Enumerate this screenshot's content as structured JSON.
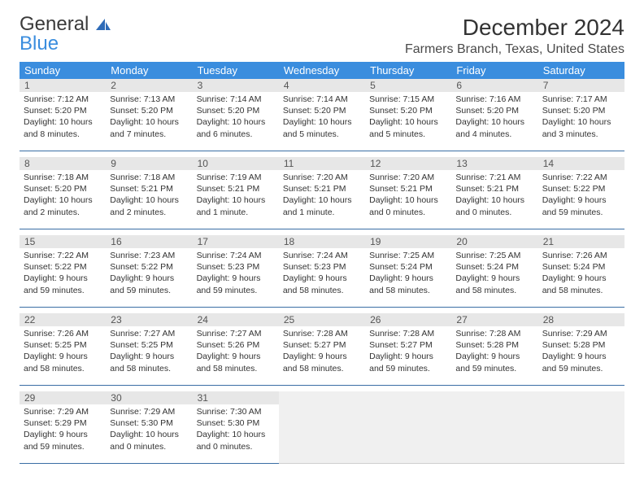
{
  "brand": {
    "general": "General",
    "blue": "Blue"
  },
  "title": "December 2024",
  "location": "Farmers Branch, Texas, United States",
  "colors": {
    "header_bg": "#3a8dde",
    "header_fg": "#ffffff",
    "daynum_bg": "#e7e7e7",
    "empty_bg": "#f0f0f0",
    "row_border": "#3a6ea5",
    "logo_blue": "#3a8dde"
  },
  "font": {
    "family": "Arial",
    "title_pt": 28,
    "location_pt": 16,
    "daynum_pt": 12,
    "body_pt": 10.5,
    "header_pt": 13
  },
  "weekdays": [
    "Sunday",
    "Monday",
    "Tuesday",
    "Wednesday",
    "Thursday",
    "Friday",
    "Saturday"
  ],
  "cols": 7,
  "days": {
    "1": {
      "sunrise": "7:12 AM",
      "sunset": "5:20 PM",
      "daylight": "10 hours and 8 minutes."
    },
    "2": {
      "sunrise": "7:13 AM",
      "sunset": "5:20 PM",
      "daylight": "10 hours and 7 minutes."
    },
    "3": {
      "sunrise": "7:14 AM",
      "sunset": "5:20 PM",
      "daylight": "10 hours and 6 minutes."
    },
    "4": {
      "sunrise": "7:14 AM",
      "sunset": "5:20 PM",
      "daylight": "10 hours and 5 minutes."
    },
    "5": {
      "sunrise": "7:15 AM",
      "sunset": "5:20 PM",
      "daylight": "10 hours and 5 minutes."
    },
    "6": {
      "sunrise": "7:16 AM",
      "sunset": "5:20 PM",
      "daylight": "10 hours and 4 minutes."
    },
    "7": {
      "sunrise": "7:17 AM",
      "sunset": "5:20 PM",
      "daylight": "10 hours and 3 minutes."
    },
    "8": {
      "sunrise": "7:18 AM",
      "sunset": "5:20 PM",
      "daylight": "10 hours and 2 minutes."
    },
    "9": {
      "sunrise": "7:18 AM",
      "sunset": "5:21 PM",
      "daylight": "10 hours and 2 minutes."
    },
    "10": {
      "sunrise": "7:19 AM",
      "sunset": "5:21 PM",
      "daylight": "10 hours and 1 minute."
    },
    "11": {
      "sunrise": "7:20 AM",
      "sunset": "5:21 PM",
      "daylight": "10 hours and 1 minute."
    },
    "12": {
      "sunrise": "7:20 AM",
      "sunset": "5:21 PM",
      "daylight": "10 hours and 0 minutes."
    },
    "13": {
      "sunrise": "7:21 AM",
      "sunset": "5:21 PM",
      "daylight": "10 hours and 0 minutes."
    },
    "14": {
      "sunrise": "7:22 AM",
      "sunset": "5:22 PM",
      "daylight": "9 hours and 59 minutes."
    },
    "15": {
      "sunrise": "7:22 AM",
      "sunset": "5:22 PM",
      "daylight": "9 hours and 59 minutes."
    },
    "16": {
      "sunrise": "7:23 AM",
      "sunset": "5:22 PM",
      "daylight": "9 hours and 59 minutes."
    },
    "17": {
      "sunrise": "7:24 AM",
      "sunset": "5:23 PM",
      "daylight": "9 hours and 59 minutes."
    },
    "18": {
      "sunrise": "7:24 AM",
      "sunset": "5:23 PM",
      "daylight": "9 hours and 58 minutes."
    },
    "19": {
      "sunrise": "7:25 AM",
      "sunset": "5:24 PM",
      "daylight": "9 hours and 58 minutes."
    },
    "20": {
      "sunrise": "7:25 AM",
      "sunset": "5:24 PM",
      "daylight": "9 hours and 58 minutes."
    },
    "21": {
      "sunrise": "7:26 AM",
      "sunset": "5:24 PM",
      "daylight": "9 hours and 58 minutes."
    },
    "22": {
      "sunrise": "7:26 AM",
      "sunset": "5:25 PM",
      "daylight": "9 hours and 58 minutes."
    },
    "23": {
      "sunrise": "7:27 AM",
      "sunset": "5:25 PM",
      "daylight": "9 hours and 58 minutes."
    },
    "24": {
      "sunrise": "7:27 AM",
      "sunset": "5:26 PM",
      "daylight": "9 hours and 58 minutes."
    },
    "25": {
      "sunrise": "7:28 AM",
      "sunset": "5:27 PM",
      "daylight": "9 hours and 58 minutes."
    },
    "26": {
      "sunrise": "7:28 AM",
      "sunset": "5:27 PM",
      "daylight": "9 hours and 59 minutes."
    },
    "27": {
      "sunrise": "7:28 AM",
      "sunset": "5:28 PM",
      "daylight": "9 hours and 59 minutes."
    },
    "28": {
      "sunrise": "7:29 AM",
      "sunset": "5:28 PM",
      "daylight": "9 hours and 59 minutes."
    },
    "29": {
      "sunrise": "7:29 AM",
      "sunset": "5:29 PM",
      "daylight": "9 hours and 59 minutes."
    },
    "30": {
      "sunrise": "7:29 AM",
      "sunset": "5:30 PM",
      "daylight": "10 hours and 0 minutes."
    },
    "31": {
      "sunrise": "7:30 AM",
      "sunset": "5:30 PM",
      "daylight": "10 hours and 0 minutes."
    }
  },
  "weeks": [
    [
      1,
      2,
      3,
      4,
      5,
      6,
      7
    ],
    [
      8,
      9,
      10,
      11,
      12,
      13,
      14
    ],
    [
      15,
      16,
      17,
      18,
      19,
      20,
      21
    ],
    [
      22,
      23,
      24,
      25,
      26,
      27,
      28
    ],
    [
      29,
      30,
      31,
      0,
      0,
      0,
      0
    ]
  ],
  "labels": {
    "sunrise": "Sunrise:",
    "sunset": "Sunset:",
    "daylight": "Daylight:"
  }
}
